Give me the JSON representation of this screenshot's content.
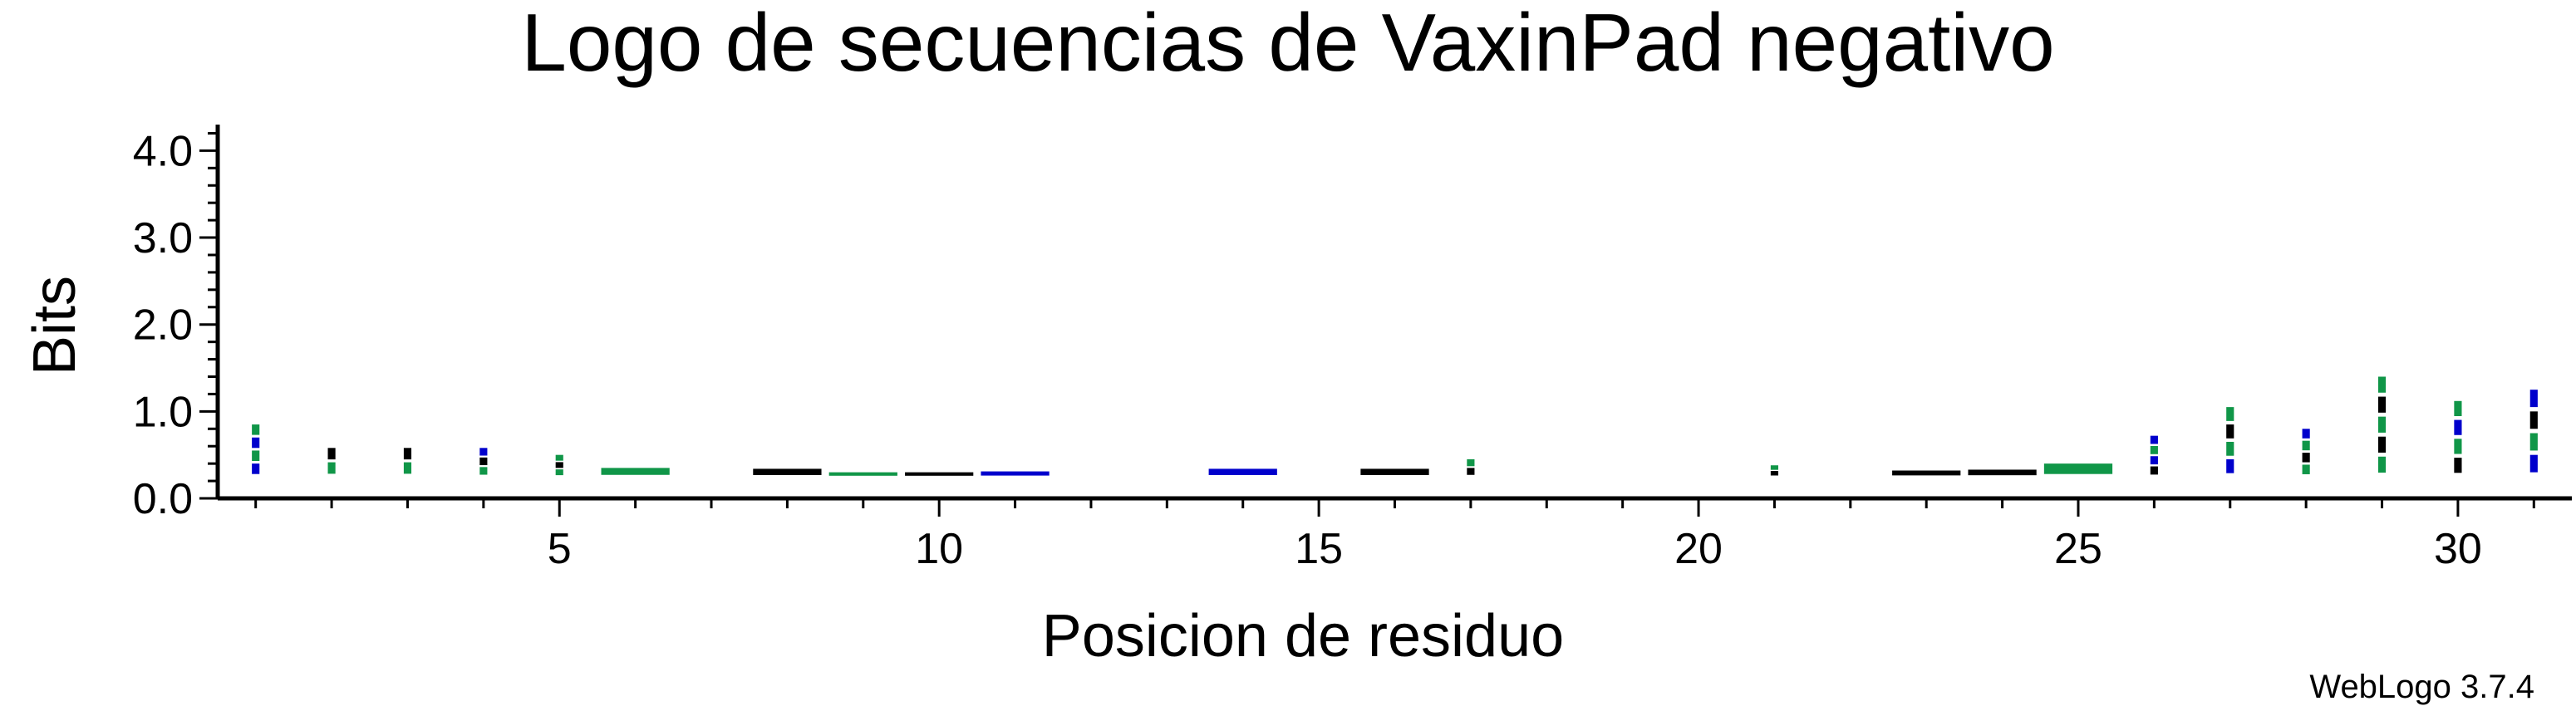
{
  "chart_data": {
    "type": "bar",
    "title": "Logo de secuencias de VaxinPad negativo",
    "xlabel": "Posicion de residuo",
    "ylabel": "Bits",
    "ylim": [
      0,
      4.3
    ],
    "xlim": [
      0.5,
      31.5
    ],
    "y_ticks": [
      "0.0",
      "1.0",
      "2.0",
      "3.0",
      "4.0"
    ],
    "y_tick_values": [
      0,
      1,
      2,
      3,
      4
    ],
    "x_ticks": [
      "5",
      "10",
      "15",
      "20",
      "25",
      "30"
    ],
    "x_tick_values": [
      5,
      10,
      15,
      20,
      25,
      30
    ],
    "colors": {
      "blue": "#0000cc",
      "green": "#109648",
      "black": "#000000"
    },
    "series": [
      {
        "x": 1,
        "height": 0.85,
        "colors": [
          "green",
          "blue",
          "green",
          "blue"
        ]
      },
      {
        "x": 2,
        "height": 0.58,
        "colors": [
          "black",
          "green"
        ]
      },
      {
        "x": 3,
        "height": 0.58,
        "colors": [
          "black",
          "green"
        ]
      },
      {
        "x": 4,
        "height": 0.58,
        "colors": [
          "blue",
          "black",
          "green"
        ]
      },
      {
        "x": 5,
        "height": 0.5,
        "colors": [
          "green",
          "black",
          "green"
        ]
      },
      {
        "x": 6,
        "height": 0.35,
        "colors": [
          "green"
        ]
      },
      {
        "x": 8,
        "height": 0.34,
        "colors": [
          "black"
        ]
      },
      {
        "x": 9,
        "height": 0.3,
        "colors": [
          "green"
        ]
      },
      {
        "x": 10,
        "height": 0.3,
        "colors": [
          "black"
        ]
      },
      {
        "x": 11,
        "height": 0.31,
        "colors": [
          "blue"
        ]
      },
      {
        "x": 14,
        "height": 0.34,
        "colors": [
          "blue"
        ]
      },
      {
        "x": 16,
        "height": 0.34,
        "colors": [
          "black"
        ]
      },
      {
        "x": 17,
        "height": 0.45,
        "colors": [
          "green",
          "black"
        ]
      },
      {
        "x": 21,
        "height": 0.38,
        "colors": [
          "green",
          "black"
        ]
      },
      {
        "x": 23,
        "height": 0.32,
        "colors": [
          "black"
        ]
      },
      {
        "x": 24,
        "height": 0.33,
        "colors": [
          "black"
        ]
      },
      {
        "x": 25,
        "height": 0.4,
        "colors": [
          "green"
        ]
      },
      {
        "x": 26,
        "height": 0.72,
        "colors": [
          "blue",
          "green",
          "blue",
          "black"
        ]
      },
      {
        "x": 27,
        "height": 1.05,
        "colors": [
          "green",
          "black",
          "green",
          "blue"
        ]
      },
      {
        "x": 28,
        "height": 0.8,
        "colors": [
          "blue",
          "green",
          "black",
          "green"
        ]
      },
      {
        "x": 29,
        "height": 1.4,
        "colors": [
          "green",
          "black",
          "green",
          "black",
          "green"
        ]
      },
      {
        "x": 30,
        "height": 1.12,
        "colors": [
          "green",
          "blue",
          "green",
          "black"
        ]
      },
      {
        "x": 31,
        "height": 1.25,
        "colors": [
          "blue",
          "black",
          "green",
          "blue"
        ]
      }
    ]
  },
  "footer": "WebLogo 3.7.4"
}
